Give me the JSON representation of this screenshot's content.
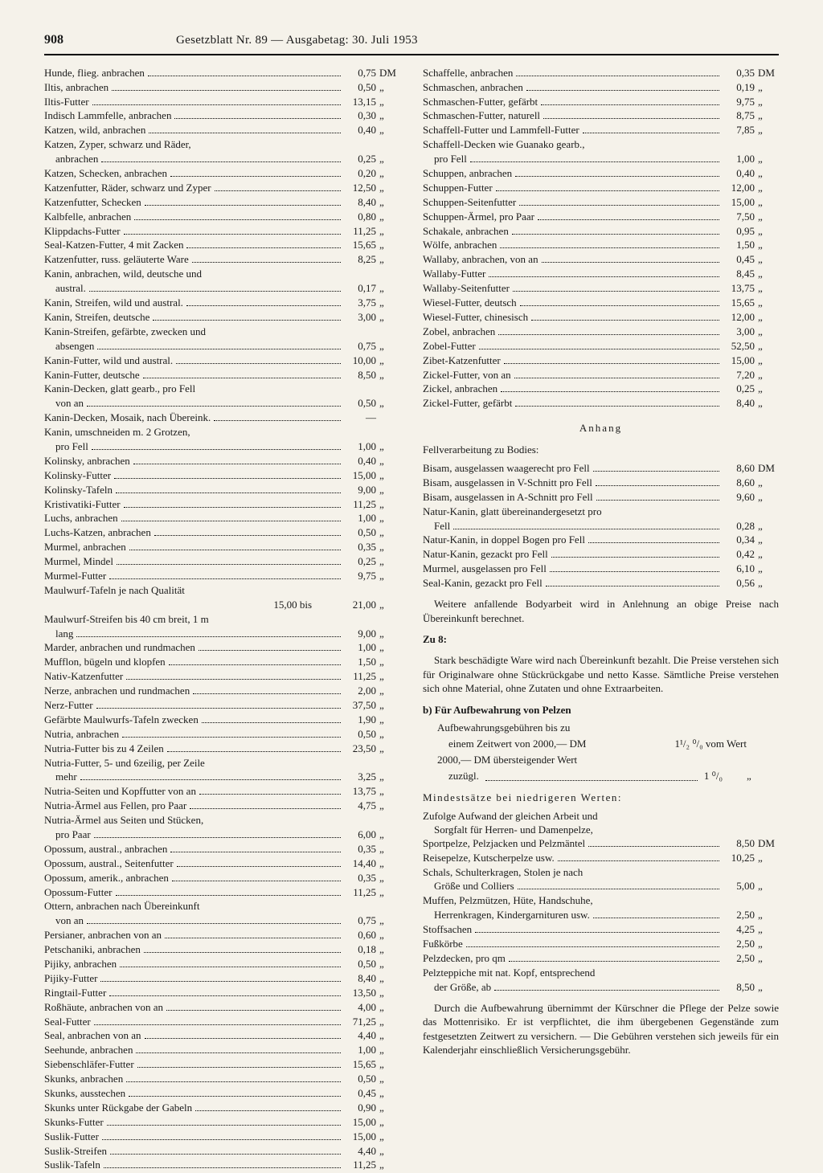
{
  "header": {
    "page": "908",
    "title": "Gesetzblatt Nr. 89 — Ausgabetag: 30. Juli 1953"
  },
  "currency_first": "DM",
  "ditto": "„",
  "left_items": [
    {
      "label": "Hunde, flieg. anbrachen",
      "val": "0,75",
      "unit": "DM"
    },
    {
      "label": "Iltis, anbrachen",
      "val": "0,50",
      "unit": "„"
    },
    {
      "label": "Iltis-Futter",
      "val": "13,15",
      "unit": "„"
    },
    {
      "label": "Indisch Lammfelle, anbrachen",
      "val": "0,30",
      "unit": "„"
    },
    {
      "label": "Katzen, wild, anbrachen",
      "val": "0,40",
      "unit": "„"
    },
    {
      "label": "Katzen, Zyper, schwarz und Räder,",
      "cont": true
    },
    {
      "label": "anbrachen",
      "val": "0,25",
      "unit": "„",
      "indent": true
    },
    {
      "label": "Katzen, Schecken, anbrachen",
      "val": "0,20",
      "unit": "„"
    },
    {
      "label": "Katzenfutter, Räder, schwarz und Zyper",
      "val": "12,50",
      "unit": "„"
    },
    {
      "label": "Katzenfutter, Schecken",
      "val": "8,40",
      "unit": "„"
    },
    {
      "label": "Kalbfelle, anbrachen",
      "val": "0,80",
      "unit": "„"
    },
    {
      "label": "Klippdachs-Futter",
      "val": "11,25",
      "unit": "„"
    },
    {
      "label": "Seal-Katzen-Futter, 4 mit Zacken",
      "val": "15,65",
      "unit": "„"
    },
    {
      "label": "Katzenfutter, russ. geläuterte Ware",
      "val": "8,25",
      "unit": "„"
    },
    {
      "label": "Kanin, anbrachen, wild, deutsche und",
      "cont": true
    },
    {
      "label": "austral.",
      "val": "0,17",
      "unit": "„",
      "indent": true
    },
    {
      "label": "Kanin, Streifen, wild und austral.",
      "val": "3,75",
      "unit": "„"
    },
    {
      "label": "Kanin, Streifen, deutsche",
      "val": "3,00",
      "unit": "„"
    },
    {
      "label": "Kanin-Streifen, gefärbte, zwecken und",
      "cont": true
    },
    {
      "label": "absengen",
      "val": "0,75",
      "unit": "„",
      "indent": true
    },
    {
      "label": "Kanin-Futter, wild und austral.",
      "val": "10,00",
      "unit": "„"
    },
    {
      "label": "Kanin-Futter, deutsche",
      "val": "8,50",
      "unit": "„"
    },
    {
      "label": "Kanin-Decken, glatt gearb., pro Fell",
      "cont": true
    },
    {
      "label": "von an",
      "val": "0,50",
      "unit": "„",
      "indent": true
    },
    {
      "label": "Kanin-Decken, Mosaik, nach Übereink.",
      "val": "—",
      "unit": ""
    },
    {
      "label": "Kanin, umschneiden m. 2 Grotzen,",
      "cont": true
    },
    {
      "label": "pro Fell",
      "val": "1,00",
      "unit": "„",
      "indent": true
    },
    {
      "label": "Kolinsky, anbrachen",
      "val": "0,40",
      "unit": "„"
    },
    {
      "label": "Kolinsky-Futter",
      "val": "15,00",
      "unit": "„"
    },
    {
      "label": "Kolinsky-Tafeln",
      "val": "9,00",
      "unit": "„"
    },
    {
      "label": "Kristivatiki-Futter",
      "val": "11,25",
      "unit": "„"
    },
    {
      "label": "Luchs, anbrachen",
      "val": "1,00",
      "unit": "„"
    },
    {
      "label": "Luchs-Katzen, anbrachen",
      "val": "0,50",
      "unit": "„"
    },
    {
      "label": "Murmel, anbrachen",
      "val": "0,35",
      "unit": "„"
    },
    {
      "label": "Murmel, Mindel",
      "val": "0,25",
      "unit": "„"
    },
    {
      "label": "Murmel-Futter",
      "val": "9,75",
      "unit": "„"
    },
    {
      "label": "Maulwurf-Tafeln je nach Qualität",
      "cont": true
    },
    {
      "label": "15,00 bis",
      "val": "21,00",
      "unit": "„",
      "right_label": true
    },
    {
      "label": "Maulwurf-Streifen bis 40 cm breit, 1 m",
      "cont": true
    },
    {
      "label": "lang",
      "val": "9,00",
      "unit": "„",
      "indent": true
    },
    {
      "label": "Marder, anbrachen und rundmachen",
      "val": "1,00",
      "unit": "„"
    },
    {
      "label": "Mufflon, bügeln und klopfen",
      "val": "1,50",
      "unit": "„"
    },
    {
      "label": "Nativ-Katzenfutter",
      "val": "11,25",
      "unit": "„"
    },
    {
      "label": "Nerze, anbrachen und rundmachen",
      "val": "2,00",
      "unit": "„"
    },
    {
      "label": "Nerz-Futter",
      "val": "37,50",
      "unit": "„"
    },
    {
      "label": "Gefärbte Maulwurfs-Tafeln zwecken",
      "val": "1,90",
      "unit": "„"
    },
    {
      "label": "Nutria, anbrachen",
      "val": "0,50",
      "unit": "„"
    },
    {
      "label": "Nutria-Futter bis zu 4 Zeilen",
      "val": "23,50",
      "unit": "„"
    },
    {
      "label": "Nutria-Futter, 5- und 6zeilig, per Zeile",
      "cont": true
    },
    {
      "label": "mehr",
      "val": "3,25",
      "unit": "„",
      "indent": true
    },
    {
      "label": "Nutria-Seiten und Kopffutter von an",
      "val": "13,75",
      "unit": "„"
    },
    {
      "label": "Nutria-Ärmel aus Fellen, pro Paar",
      "val": "4,75",
      "unit": "„"
    },
    {
      "label": "Nutria-Ärmel aus Seiten und Stücken,",
      "cont": true
    },
    {
      "label": "pro Paar",
      "val": "6,00",
      "unit": "„",
      "indent": true
    },
    {
      "label": "Opossum, austral., anbrachen",
      "val": "0,35",
      "unit": "„"
    },
    {
      "label": "Opossum, austral., Seitenfutter",
      "val": "14,40",
      "unit": "„"
    },
    {
      "label": "Opossum, amerik., anbrachen",
      "val": "0,35",
      "unit": "„"
    },
    {
      "label": "Opossum-Futter",
      "val": "11,25",
      "unit": "„"
    },
    {
      "label": "Ottern, anbrachen nach Übereinkunft",
      "cont": true
    },
    {
      "label": "von an",
      "val": "0,75",
      "unit": "„",
      "indent": true
    },
    {
      "label": "Persianer, anbrachen von an",
      "val": "0,60",
      "unit": "„"
    },
    {
      "label": "Petschaniki, anbrachen",
      "val": "0,18",
      "unit": "„"
    },
    {
      "label": "Pijiky, anbrachen",
      "val": "0,50",
      "unit": "„"
    },
    {
      "label": "Pijiky-Futter",
      "val": "8,40",
      "unit": "„"
    },
    {
      "label": "Ringtail-Futter",
      "val": "13,50",
      "unit": "„"
    },
    {
      "label": "Roßhäute, anbrachen von an",
      "val": "4,00",
      "unit": "„"
    },
    {
      "label": "Seal-Futter",
      "val": "71,25",
      "unit": "„"
    },
    {
      "label": "Seal, anbrachen von an",
      "val": "4,40",
      "unit": "„"
    },
    {
      "label": "Seehunde, anbrachen",
      "val": "1,00",
      "unit": "„"
    },
    {
      "label": "Siebenschläfer-Futter",
      "val": "15,65",
      "unit": "„"
    },
    {
      "label": "Skunks, anbrachen",
      "val": "0,50",
      "unit": "„"
    },
    {
      "label": "Skunks, ausstechen",
      "val": "0,45",
      "unit": "„"
    },
    {
      "label": "Skunks unter Rückgabe der Gabeln",
      "val": "0,90",
      "unit": "„"
    },
    {
      "label": "Skunks-Futter",
      "val": "15,00",
      "unit": "„"
    },
    {
      "label": "Suslik-Futter",
      "val": "15,00",
      "unit": "„"
    },
    {
      "label": "Suslik-Streifen",
      "val": "4,40",
      "unit": "„"
    },
    {
      "label": "Suslik-Tafeln",
      "val": "11,25",
      "unit": "„"
    }
  ],
  "right_items": [
    {
      "label": "Schaffelle, anbrachen",
      "val": "0,35",
      "unit": "DM"
    },
    {
      "label": "Schmaschen, anbrachen",
      "val": "0,19",
      "unit": "„"
    },
    {
      "label": "Schmaschen-Futter, gefärbt",
      "val": "9,75",
      "unit": "„"
    },
    {
      "label": "Schmaschen-Futter, naturell",
      "val": "8,75",
      "unit": "„"
    },
    {
      "label": "Schaffell-Futter und Lammfell-Futter",
      "val": "7,85",
      "unit": "„"
    },
    {
      "label": "Schaffell-Decken wie Guanako gearb.,",
      "cont": true
    },
    {
      "label": "pro Fell",
      "val": "1,00",
      "unit": "„",
      "indent": true
    },
    {
      "label": "Schuppen, anbrachen",
      "val": "0,40",
      "unit": "„"
    },
    {
      "label": "Schuppen-Futter",
      "val": "12,00",
      "unit": "„"
    },
    {
      "label": "Schuppen-Seitenfutter",
      "val": "15,00",
      "unit": "„"
    },
    {
      "label": "Schuppen-Ärmel, pro Paar",
      "val": "7,50",
      "unit": "„"
    },
    {
      "label": "Schakale, anbrachen",
      "val": "0,95",
      "unit": "„"
    },
    {
      "label": "Wölfe, anbrachen",
      "val": "1,50",
      "unit": "„"
    },
    {
      "label": "Wallaby, anbrachen, von an",
      "val": "0,45",
      "unit": "„"
    },
    {
      "label": "Wallaby-Futter",
      "val": "8,45",
      "unit": "„"
    },
    {
      "label": "Wallaby-Seitenfutter",
      "val": "13,75",
      "unit": "„"
    },
    {
      "label": "Wiesel-Futter, deutsch",
      "val": "15,65",
      "unit": "„"
    },
    {
      "label": "Wiesel-Futter, chinesisch",
      "val": "12,00",
      "unit": "„"
    },
    {
      "label": "Zobel, anbrachen",
      "val": "3,00",
      "unit": "„"
    },
    {
      "label": "Zobel-Futter",
      "val": "52,50",
      "unit": "„"
    },
    {
      "label": "Zibet-Katzenfutter",
      "val": "15,00",
      "unit": "„"
    },
    {
      "label": "Zickel-Futter, von an",
      "val": "7,20",
      "unit": "„"
    },
    {
      "label": "Zickel, anbrachen",
      "val": "0,25",
      "unit": "„"
    },
    {
      "label": "Zickel-Futter, gefärbt",
      "val": "8,40",
      "unit": "„"
    }
  ],
  "anhang": {
    "title": "Anhang",
    "subtitle": "Fellverarbeitung zu Bodies:",
    "items": [
      {
        "label": "Bisam, ausgelassen waagerecht pro Fell",
        "val": "8,60",
        "unit": "DM"
      },
      {
        "label": "Bisam, ausgelassen in V-Schnitt pro Fell",
        "val": "8,60",
        "unit": "„"
      },
      {
        "label": "Bisam, ausgelassen in A-Schnitt pro Fell",
        "val": "9,60",
        "unit": "„"
      },
      {
        "label": "Natur-Kanin, glatt übereinandergesetzt pro",
        "cont": true
      },
      {
        "label": "Fell",
        "val": "0,28",
        "unit": "„",
        "indent": true
      },
      {
        "label": "Natur-Kanin, in doppel Bogen pro Fell",
        "val": "0,34",
        "unit": "„"
      },
      {
        "label": "Natur-Kanin, gezackt pro Fell",
        "val": "0,42",
        "unit": "„"
      },
      {
        "label": "Murmel, ausgelassen pro Fell",
        "val": "6,10",
        "unit": "„"
      },
      {
        "label": "Seal-Kanin, gezackt pro Fell",
        "val": "0,56",
        "unit": "„"
      }
    ],
    "note": "Weitere anfallende Bodyarbeit wird in Anlehnung an obige Preise nach Übereinkunft berechnet."
  },
  "zu8": {
    "title": "Zu 8:",
    "para": "Stark beschädigte Ware wird nach Übereinkunft bezahlt. Die Preise verstehen sich für Originalware ohne Stückrückgabe und netto Kasse. Sämtliche Preise verstehen sich ohne Material, ohne Zutaten und ohne Extraarbeiten."
  },
  "section_b": {
    "title": "b) Für Aufbewahrung von Pelzen",
    "storage": {
      "line1": "Aufbewahrungsgebühren bis zu",
      "line2a": "einem Zeitwert von 2000,— DM",
      "line2b": "1¹/₂ ⁰/₀ vom Wert",
      "line3": "2000,— DM übersteigender Wert",
      "line4a": "zuzügl.",
      "line4b": "1 ⁰/₀",
      "line4c": "„"
    },
    "min_title": "Mindestsätze bei niedrigeren Werten:",
    "min_intro1": "Zufolge Aufwand der gleichen Arbeit und",
    "min_intro2": "Sorgfalt für Herren- und Damenpelze,",
    "min_items": [
      {
        "label": "Sportpelze, Pelzjacken und Pelzmäntel",
        "val": "8,50",
        "unit": "DM"
      },
      {
        "label": "Reisepelze, Kutscherpelze usw.",
        "val": "10,25",
        "unit": "„"
      },
      {
        "label": "Schals, Schulterkragen, Stolen je nach",
        "cont": true
      },
      {
        "label": "Größe und Colliers",
        "val": "5,00",
        "unit": "„",
        "indent": true
      },
      {
        "label": "Muffen, Pelzmützen, Hüte, Handschuhe,",
        "cont": true
      },
      {
        "label": "Herrenkragen, Kindergarnituren usw.",
        "val": "2,50",
        "unit": "„",
        "indent": true
      },
      {
        "label": "Stoffsachen",
        "val": "4,25",
        "unit": "„"
      },
      {
        "label": "Fußkörbe",
        "val": "2,50",
        "unit": "„"
      },
      {
        "label": "Pelzdecken, pro qm",
        "val": "2,50",
        "unit": "„"
      },
      {
        "label": "Pelzteppiche mit nat. Kopf, entsprechend",
        "cont": true
      },
      {
        "label": "der Größe, ab",
        "val": "8,50",
        "unit": "„",
        "indent": true
      }
    ],
    "final_para": "Durch die Aufbewahrung übernimmt der Kürschner die Pflege der Pelze sowie das Mottenrisiko. Er ist verpflichtet, die ihm übergebenen Gegenstände zum festgesetzten Zeitwert zu versichern. — Die Gebühren verstehen sich jeweils für ein Kalenderjahr einschließlich Versicherungsgebühr."
  }
}
